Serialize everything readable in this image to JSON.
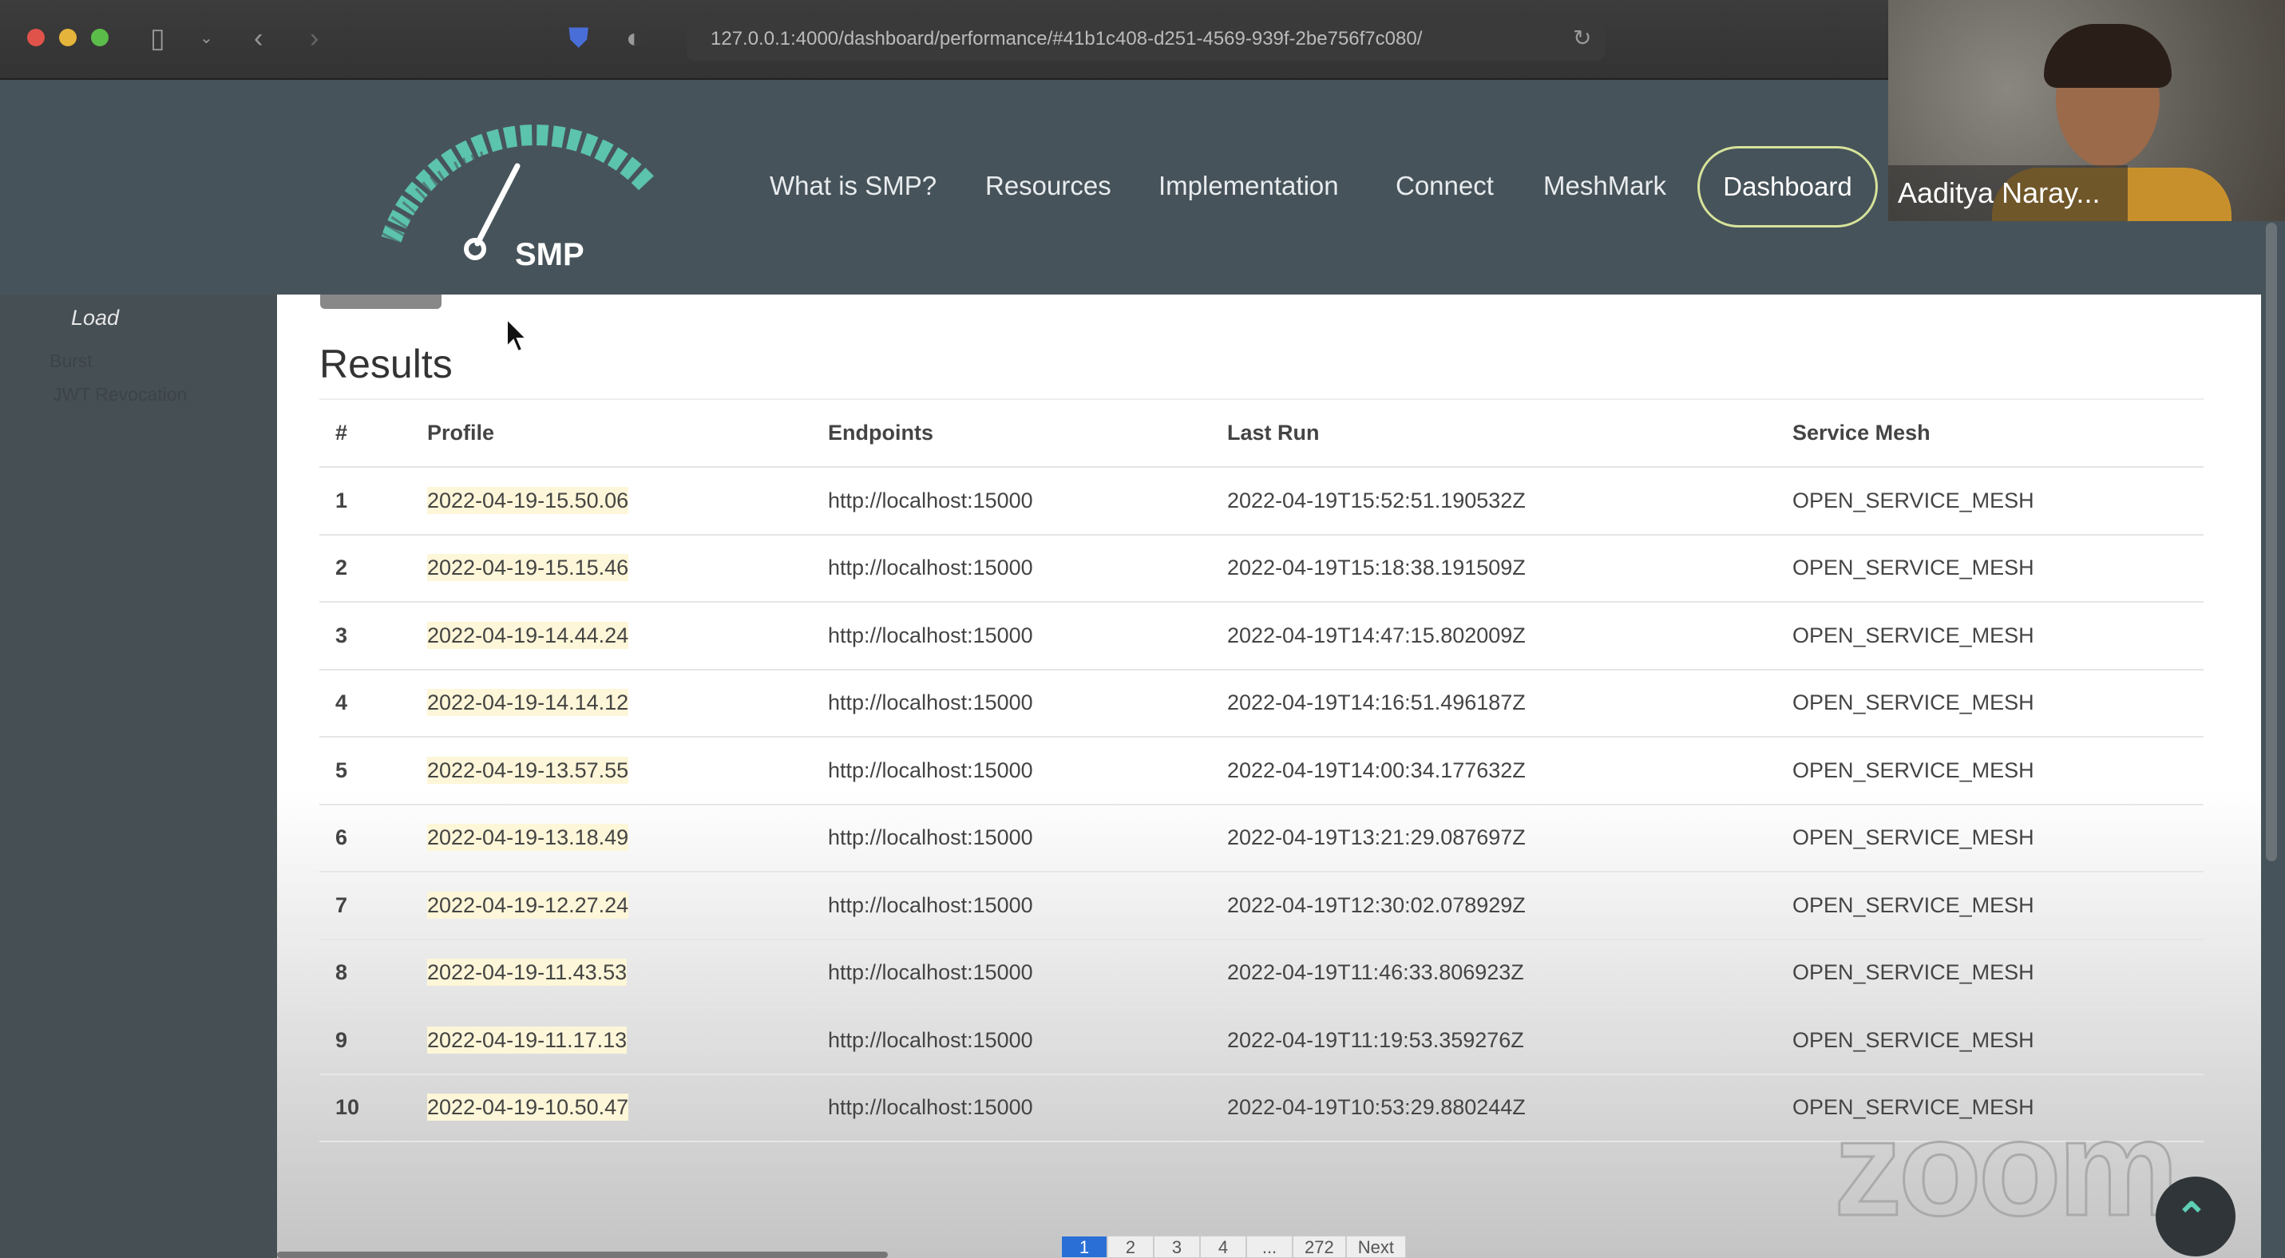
{
  "browser": {
    "url": "127.0.0.1:4000/dashboard/performance/#41b1c408-d251-4569-939f-2be756f7c080/",
    "icons": [
      "sidebar-toggle-icon",
      "chevron-down-icon",
      "back-icon",
      "forward-icon",
      "shield-icon",
      "privacy-icon",
      "reload-icon"
    ]
  },
  "header": {
    "logo_text": "SMP",
    "nav": [
      "What is SMP?",
      "Resources",
      "Implementation",
      "Connect",
      "MeshMark"
    ],
    "active_nav": "Dashboard",
    "accent": "#5ecfb5"
  },
  "video": {
    "participant_name": "Aaditya Naray..."
  },
  "sidebar": {
    "items": [
      "Load",
      "Burst",
      "JWT Revocation"
    ]
  },
  "main": {
    "title": "Results",
    "columns": [
      "#",
      "Profile",
      "Endpoints",
      "Last Run",
      "Service Mesh"
    ],
    "rows": [
      [
        "1",
        "2022-04-19-15.50.06",
        "http://localhost:15000",
        "2022-04-19T15:52:51.190532Z",
        "OPEN_SERVICE_MESH"
      ],
      [
        "2",
        "2022-04-19-15.15.46",
        "http://localhost:15000",
        "2022-04-19T15:18:38.191509Z",
        "OPEN_SERVICE_MESH"
      ],
      [
        "3",
        "2022-04-19-14.44.24",
        "http://localhost:15000",
        "2022-04-19T14:47:15.802009Z",
        "OPEN_SERVICE_MESH"
      ],
      [
        "4",
        "2022-04-19-14.14.12",
        "http://localhost:15000",
        "2022-04-19T14:16:51.496187Z",
        "OPEN_SERVICE_MESH"
      ],
      [
        "5",
        "2022-04-19-13.57.55",
        "http://localhost:15000",
        "2022-04-19T14:00:34.177632Z",
        "OPEN_SERVICE_MESH"
      ],
      [
        "6",
        "2022-04-19-13.18.49",
        "http://localhost:15000",
        "2022-04-19T13:21:29.087697Z",
        "OPEN_SERVICE_MESH"
      ],
      [
        "7",
        "2022-04-19-12.27.24",
        "http://localhost:15000",
        "2022-04-19T12:30:02.078929Z",
        "OPEN_SERVICE_MESH"
      ],
      [
        "8",
        "2022-04-19-11.43.53",
        "http://localhost:15000",
        "2022-04-19T11:46:33.806923Z",
        "OPEN_SERVICE_MESH"
      ],
      [
        "9",
        "2022-04-19-11.17.13",
        "http://localhost:15000",
        "2022-04-19T11:19:53.359276Z",
        "OPEN_SERVICE_MESH"
      ],
      [
        "10",
        "2022-04-19-10.50.47",
        "http://localhost:15000",
        "2022-04-19T10:53:29.880244Z",
        "OPEN_SERVICE_MESH"
      ]
    ],
    "pagination": [
      "1",
      "2",
      "3",
      "4",
      "...",
      "272",
      "Next"
    ],
    "current_page": "1"
  },
  "watermark": "zoom"
}
